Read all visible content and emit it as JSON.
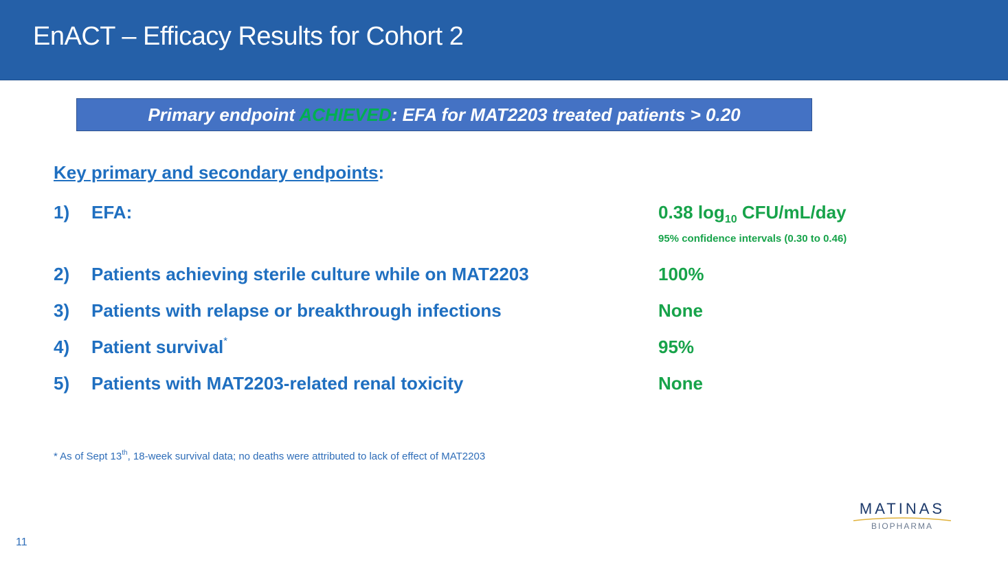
{
  "slide": {
    "title": "EnACT – Efficacy Results for Cohort 2",
    "page_number": "11"
  },
  "banner": {
    "prefix": "Primary endpoint ",
    "achieved": "ACHIEVED",
    "suffix": ": EFA for MAT2203 treated patients > 0.20",
    "achieved_color": "#00b050"
  },
  "section": {
    "heading": "Key primary and secondary endpoints",
    "colon": ":"
  },
  "endpoints": [
    {
      "num": "1)",
      "label": "EFA:",
      "value_main": "0.38 log",
      "value_sub": "10",
      "value_unit": " CFU/mL/day",
      "note": "95% confidence intervals (0.30 to 0.46)"
    },
    {
      "num": "2)",
      "label": "Patients achieving sterile culture while on MAT2203",
      "value": "100%"
    },
    {
      "num": "3)",
      "label": "Patients with relapse or breakthrough infections",
      "value": "None"
    },
    {
      "num": "4)",
      "label": "Patient survival",
      "label_sup": "*",
      "value": "95%"
    },
    {
      "num": "5)",
      "label": "Patients with MAT2203-related renal toxicity",
      "value": "None"
    }
  ],
  "footnote": {
    "before": "* As of Sept 13",
    "sup": "th",
    "after": ", 18-week survival data; no deaths were attributed to lack of effect of MAT2203"
  },
  "logo": {
    "name": "MATINAS",
    "sub": "BIOPHARMA"
  },
  "colors": {
    "header": "#2560a8",
    "text_blue": "#1f6fc0",
    "value_green": "#17a34a"
  }
}
